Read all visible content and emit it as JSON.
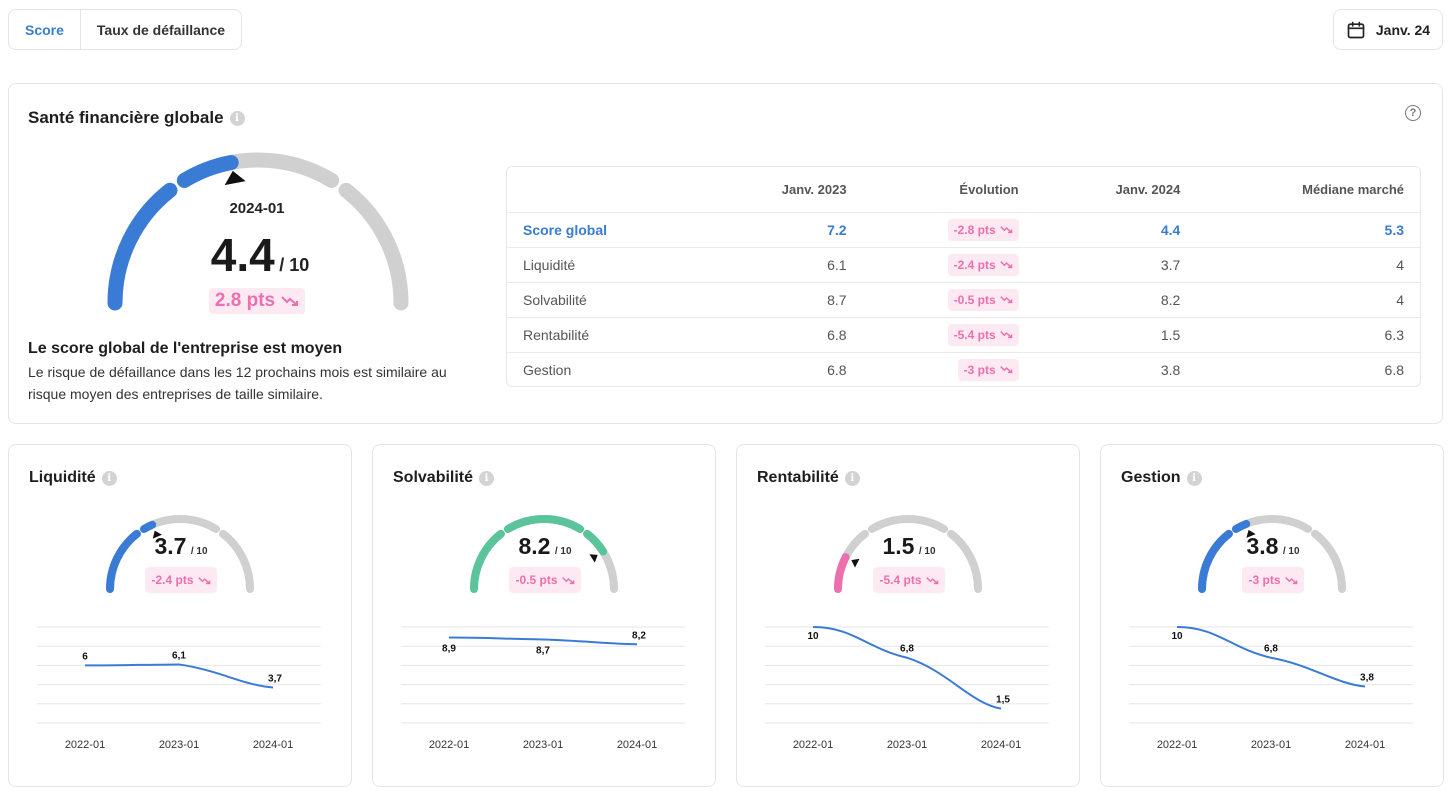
{
  "tabs": [
    {
      "label": "Score",
      "active": true
    },
    {
      "label": "Taux de défaillance",
      "active": false
    }
  ],
  "date_button": {
    "label": "Janv. 24",
    "icon": "calendar-icon"
  },
  "main": {
    "title": "Santé financière globale",
    "gauge": {
      "period": "2024-01",
      "score": "4.4",
      "denominator": "/ 10",
      "delta": "2.8 pts",
      "value": 4.4,
      "max": 10,
      "color": "#3a7bd5"
    },
    "message_title": "Le score global de l'entreprise est moyen",
    "message_text": "Le risque de défaillance dans les 12 prochains mois est similaire au risque moyen des entreprises de taille similaire."
  },
  "table": {
    "headers": [
      "",
      "Janv. 2023",
      "Évolution",
      "Janv. 2024",
      "Médiane marché"
    ],
    "rows": [
      {
        "label": "Score global",
        "jan2023": "7.2",
        "evolution": "-2.8 pts",
        "jan2024": "4.4",
        "median": "5.3"
      },
      {
        "label": "Liquidité",
        "jan2023": "6.1",
        "evolution": "-2.4 pts",
        "jan2024": "3.7",
        "median": "4"
      },
      {
        "label": "Solvabilité",
        "jan2023": "8.7",
        "evolution": "-0.5 pts",
        "jan2024": "8.2",
        "median": "4"
      },
      {
        "label": "Rentabilité",
        "jan2023": "6.8",
        "evolution": "-5.4 pts",
        "jan2024": "1.5",
        "median": "6.3"
      },
      {
        "label": "Gestion",
        "jan2023": "6.8",
        "evolution": "-3 pts",
        "jan2024": "3.8",
        "median": "6.8"
      }
    ]
  },
  "cards": [
    {
      "title": "Liquidité",
      "score": "3.7",
      "denominator": "/ 10",
      "delta": "-2.4 pts",
      "value": 3.7,
      "color": "#3a7bd5"
    },
    {
      "title": "Solvabilité",
      "score": "8.2",
      "denominator": "/ 10",
      "delta": "-0.5 pts",
      "value": 8.2,
      "color": "#5cc49a"
    },
    {
      "title": "Rentabilité",
      "score": "1.5",
      "denominator": "/ 10",
      "delta": "-5.4 pts",
      "value": 1.5,
      "color": "#ec6fae"
    },
    {
      "title": "Gestion",
      "score": "3.8",
      "denominator": "/ 10",
      "delta": "-3 pts",
      "value": 3.8,
      "color": "#3a7bd5"
    }
  ],
  "chart_data": [
    {
      "type": "line",
      "title": "Liquidité",
      "x": [
        "2022-01",
        "2023-01",
        "2024-01"
      ],
      "y": [
        6,
        6.1,
        3.7
      ],
      "labels": [
        "6",
        "6,1",
        "3,7"
      ]
    },
    {
      "type": "line",
      "title": "Solvabilité",
      "x": [
        "2022-01",
        "2023-01",
        "2024-01"
      ],
      "y": [
        8.9,
        8.7,
        8.2
      ],
      "labels": [
        "8,9",
        "8,7",
        "8,2"
      ]
    },
    {
      "type": "line",
      "title": "Rentabilité",
      "x": [
        "2022-01",
        "2023-01",
        "2024-01"
      ],
      "y": [
        10,
        6.8,
        1.5
      ],
      "labels": [
        "10",
        "6,8",
        "1,5"
      ]
    },
    {
      "type": "line",
      "title": "Gestion",
      "x": [
        "2022-01",
        "2023-01",
        "2024-01"
      ],
      "y": [
        10,
        6.8,
        3.8
      ],
      "labels": [
        "10",
        "6,8",
        "3,8"
      ]
    }
  ]
}
